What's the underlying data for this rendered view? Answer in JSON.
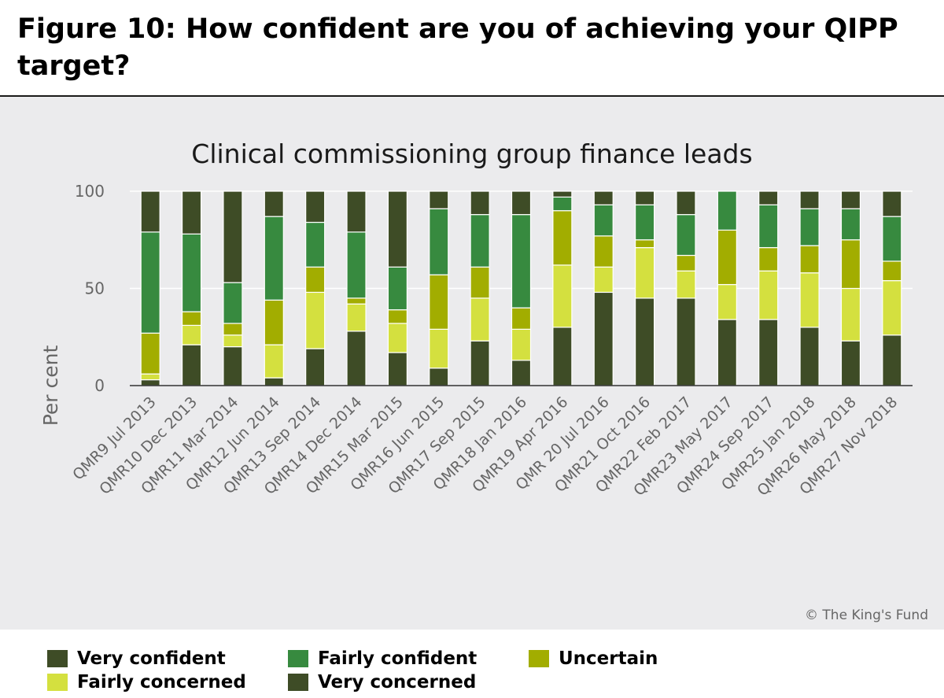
{
  "figure": {
    "title": "Figure 10: How confident are you of achieving your QIPP target?",
    "credit": "© The King's Fund"
  },
  "chart_data": {
    "type": "bar",
    "stacked": true,
    "title": "Clinical commissioning group finance leads",
    "xlabel": "",
    "ylabel": "Per cent",
    "ylim": [
      0,
      100
    ],
    "yticks": [
      0,
      50,
      100
    ],
    "grid": true,
    "categories": [
      "QMR9 Jul 2013",
      "QMR10 Dec 2013",
      "QMR11 Mar 2014",
      "QMR12 Jun 2014",
      "QMR13 Sep 2014",
      "QMR14 Dec 2014",
      "QMR15 Mar 2015",
      "QMR16 Jun 2015",
      "QMR17 Sep 2015",
      "QMR18 Jan 2016",
      "QMR19 Apr 2016",
      "QMR 20 Jul 2016",
      "QMR21 Oct 2016",
      "QMR22 Feb 2017",
      "QMR23 May 2017",
      "QMR24 Sep 2017",
      "QMR25 Jan 2018",
      "QMR26 May 2018",
      "QMR27 Nov 2018"
    ],
    "series": [
      {
        "name": "Very confident",
        "color": "#3e4c26",
        "values": [
          3,
          21,
          20,
          4,
          19,
          28,
          17,
          9,
          23,
          13,
          30,
          48,
          45,
          45,
          34,
          34,
          30,
          23,
          26
        ]
      },
      {
        "name": "Fairly concerned",
        "color": "#d4e03f",
        "values": [
          3,
          10,
          6,
          17,
          29,
          14,
          15,
          20,
          22,
          16,
          32,
          13,
          26,
          14,
          18,
          25,
          28,
          27,
          28
        ]
      },
      {
        "name": "Uncertain",
        "color": "#a2ad00",
        "values": [
          21,
          7,
          6,
          23,
          13,
          3,
          7,
          28,
          16,
          11,
          28,
          16,
          4,
          8,
          28,
          12,
          14,
          25,
          10
        ]
      },
      {
        "name": "Fairly confident",
        "color": "#378a3f",
        "values": [
          52,
          40,
          21,
          43,
          23,
          34,
          22,
          34,
          27,
          48,
          7,
          16,
          18,
          21,
          20,
          22,
          19,
          16,
          23
        ]
      },
      {
        "name": "Very concerned",
        "color": "#3e4c26",
        "values": [
          21,
          22,
          47,
          13,
          16,
          21,
          39,
          9,
          12,
          12,
          3,
          7,
          7,
          12,
          0,
          7,
          9,
          9,
          13
        ]
      }
    ],
    "legend": {
      "position": "bottom",
      "items": [
        "Very confident",
        "Fairly confident",
        "Uncertain",
        "Fairly concerned",
        "Very concerned"
      ]
    }
  }
}
